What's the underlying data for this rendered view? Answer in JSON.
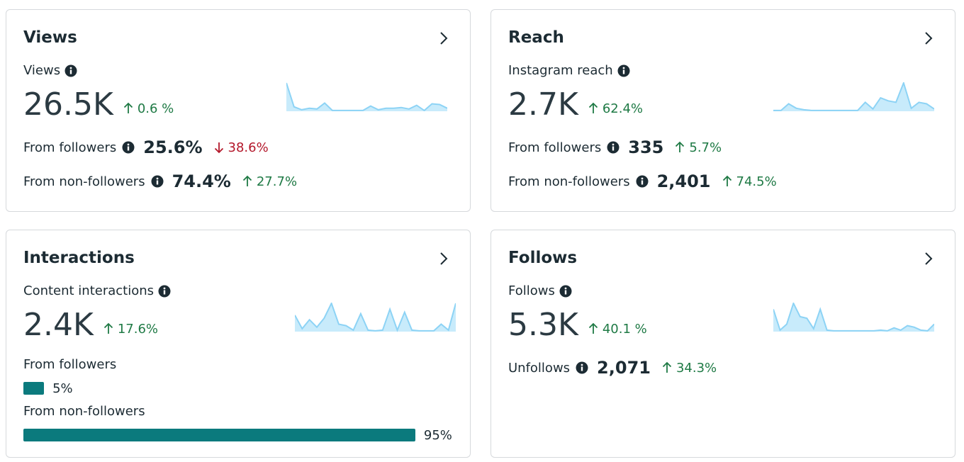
{
  "cards": [
    {
      "title": "Views",
      "metric": {
        "label": "Views",
        "value": "26.5K",
        "change": {
          "direction": "up",
          "text": "0.6 %"
        }
      },
      "sparkline": [
        38,
        6,
        2,
        4,
        3,
        11,
        1,
        1,
        1,
        1,
        1,
        7,
        2,
        4,
        4,
        5,
        3,
        8,
        1,
        10,
        9,
        4
      ],
      "rows": [
        {
          "label": "From followers",
          "value": "25.6%",
          "change": {
            "direction": "down",
            "text": "38.6%"
          }
        },
        {
          "label": "From non-followers",
          "value": "74.4%",
          "change": {
            "direction": "up",
            "text": "27.7%"
          }
        }
      ]
    },
    {
      "title": "Reach",
      "metric": {
        "label": "Instagram reach",
        "value": "2.7K",
        "change": {
          "direction": "up",
          "text": "62.4%"
        }
      },
      "sparkline": [
        1,
        1,
        10,
        4,
        2,
        1,
        1,
        1,
        1,
        1,
        1,
        1,
        12,
        3,
        18,
        14,
        12,
        38,
        4,
        12,
        10,
        3
      ],
      "rows": [
        {
          "label": "From followers",
          "value": "335",
          "change": {
            "direction": "up",
            "text": "5.7%"
          }
        },
        {
          "label": "From non-followers",
          "value": "2,401",
          "change": {
            "direction": "up",
            "text": "74.5%"
          }
        }
      ]
    },
    {
      "title": "Interactions",
      "metric": {
        "label": "Content interactions",
        "value": "2.4K",
        "change": {
          "direction": "up",
          "text": "17.6%"
        }
      },
      "sparkline": [
        22,
        4,
        16,
        6,
        18,
        38,
        10,
        8,
        2,
        24,
        2,
        1,
        2,
        30,
        2,
        26,
        2,
        1,
        1,
        1,
        10,
        2,
        38
      ],
      "breakdown": [
        {
          "label": "From followers",
          "value": 5,
          "value_label": "5%"
        },
        {
          "label": "From non-followers",
          "value": 95,
          "value_label": "95%"
        }
      ]
    },
    {
      "title": "Follows",
      "metric": {
        "label": "Follows",
        "value": "5.3K",
        "change": {
          "direction": "up",
          "text": "40.1 %"
        }
      },
      "sparkline": [
        30,
        2,
        10,
        38,
        20,
        18,
        4,
        30,
        2,
        1,
        1,
        1,
        1,
        1,
        1,
        1,
        2,
        1,
        5,
        2,
        8,
        6,
        2,
        1,
        10
      ],
      "rows": [
        {
          "label": "Unfollows",
          "value": "2,071",
          "change": {
            "direction": "up",
            "text": "34.3%"
          }
        }
      ]
    }
  ]
}
